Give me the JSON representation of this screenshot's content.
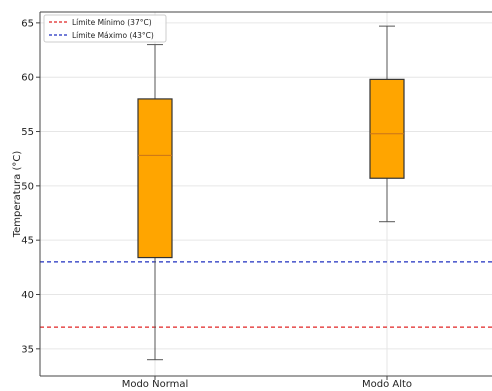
{
  "chart_data": {
    "type": "box",
    "categories": [
      "Modo Normal",
      "Modo Alto"
    ],
    "boxes": [
      {
        "category": "Modo Normal",
        "whisker_low": 34.0,
        "q1": 43.4,
        "median": 52.8,
        "q3": 58.0,
        "whisker_high": 63.0
      },
      {
        "category": "Modo Alto",
        "whisker_low": 46.7,
        "q1": 50.7,
        "median": 54.8,
        "q3": 59.8,
        "whisker_high": 64.7
      }
    ],
    "reference_lines": [
      {
        "label": "Límite Mínimo (37°C)",
        "value": 37,
        "color": "#e02424",
        "style": "dashed"
      },
      {
        "label": "Límite Máximo (43°C)",
        "value": 43,
        "color": "#1f2fbf",
        "style": "dashed"
      }
    ],
    "title": "",
    "xlabel": "",
    "ylabel": "Temperatura (°C)",
    "ylim": [
      32.5,
      66
    ],
    "yticks": [
      "35",
      "40",
      "45",
      "50",
      "55",
      "60",
      "65"
    ],
    "grid": true,
    "legend_position": "top-left",
    "colors": {
      "box_fill": "#ffa500",
      "box_edge": "#333333",
      "median": "#c8741a",
      "whisker": "#555555",
      "grid": "#e6e6e6"
    }
  }
}
